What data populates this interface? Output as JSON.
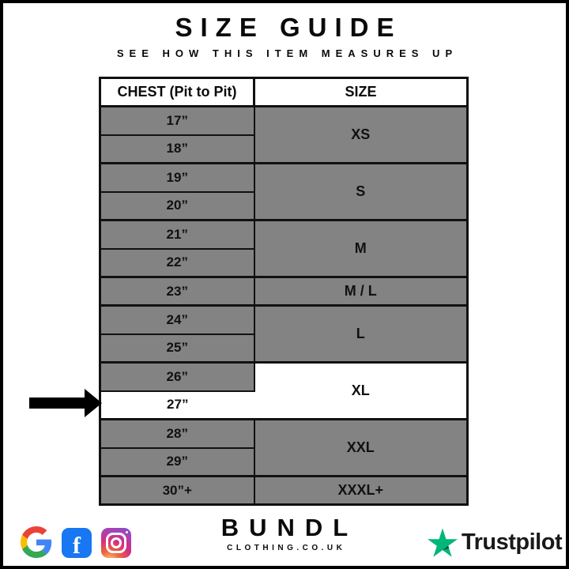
{
  "header": {
    "title": "SIZE GUIDE",
    "subtitle": "SEE HOW THIS ITEM MEASURES UP"
  },
  "table": {
    "columns": [
      "CHEST (Pit to Pit)",
      "SIZE"
    ],
    "groups": [
      {
        "size": "XS",
        "chest": [
          "17”",
          "18”"
        ]
      },
      {
        "size": "S",
        "chest": [
          "19”",
          "20”"
        ]
      },
      {
        "size": "M",
        "chest": [
          "21”",
          "22”"
        ]
      },
      {
        "size": "M / L",
        "chest": [
          "23”"
        ]
      },
      {
        "size": "L",
        "chest": [
          "24”",
          "25”"
        ]
      },
      {
        "size": "XL",
        "chest": [
          "26”",
          "27”"
        ]
      },
      {
        "size": "XXL",
        "chest": [
          "28”",
          "29”"
        ]
      },
      {
        "size": "XXXL+",
        "chest": [
          "30”+"
        ]
      }
    ],
    "highlighted_chest": "27”",
    "highlighted_size": "XL"
  },
  "footer": {
    "brand": "BUNDL",
    "brand_sub": "CLOTHING.CO.UK",
    "trustpilot_label": "Trustpilot",
    "facebook_glyph": "f",
    "social_icons": [
      "google",
      "facebook",
      "instagram"
    ]
  },
  "colors": {
    "cell_gray": "#838383",
    "table_border": "#111111",
    "highlight_white": "#ffffff",
    "arrow_black": "#000000",
    "trustpilot_green": "#00B67A",
    "trustpilot_dark": "#005128",
    "facebook_blue": "#1877F2"
  }
}
